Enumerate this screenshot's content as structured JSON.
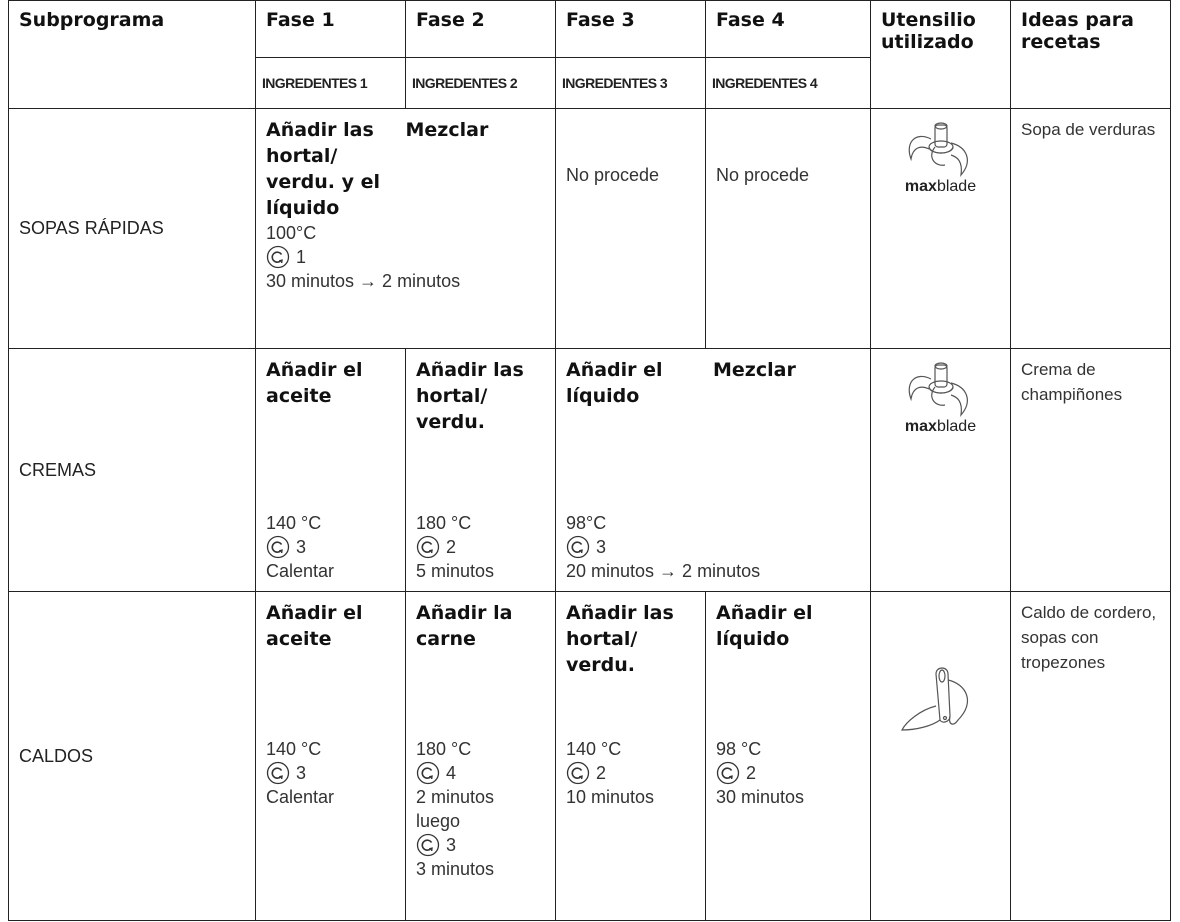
{
  "header": {
    "columns": [
      "Subprograma",
      "Fase 1",
      "Fase 2",
      "Fase 3",
      "Fase 4",
      "Utensilio utilizado",
      "Ideas para recetas"
    ],
    "ingredients": [
      "INGREDENTES 1",
      "INGREDENTES 2",
      "INGREDENTES 3",
      "INGREDENTES 4"
    ]
  },
  "rows": [
    {
      "name": "SOPAS RÁPIDAS",
      "phases": [
        {
          "actions": [
            "Añadir las hortal/ verdu. y el líquido",
            "Mezclar"
          ],
          "lines": [
            "100°C",
            {
              "speed": "1"
            },
            "30 minutos → 2 minutos"
          ]
        },
        {
          "text": "No procede"
        },
        {
          "text": "No procede"
        }
      ],
      "tool": {
        "bold": "max",
        "regular": "blade"
      },
      "ideas": "Sopa de verduras"
    },
    {
      "name": "CREMAS",
      "phases": [
        {
          "actions": [
            "Añadir el aceite"
          ],
          "lines": [
            "140 °C",
            {
              "speed": "3"
            },
            "Calentar"
          ]
        },
        {
          "actions": [
            "Añadir las hortal/ verdu."
          ],
          "lines": [
            "180 °C",
            {
              "speed": "2"
            },
            "5 minutos"
          ]
        },
        {
          "actions": [
            "Añadir el líquido",
            "Mezclar"
          ],
          "lines": [
            "98°C",
            {
              "speed": "3"
            },
            "20 minutos → 2 minutos"
          ]
        }
      ],
      "tool": {
        "bold": "max",
        "regular": "blade"
      },
      "ideas": "Crema de champiñones"
    },
    {
      "name": "CALDOS",
      "phases": [
        {
          "actions": [
            "Añadir el aceite"
          ],
          "lines": [
            "140 °C",
            {
              "speed": "3"
            },
            "Calentar"
          ]
        },
        {
          "actions": [
            "Añadir la carne"
          ],
          "lines": [
            "180 °C",
            {
              "speed": "4"
            },
            "2 minutos",
            "luego",
            {
              "speed": "3"
            },
            "3 minutos"
          ]
        },
        {
          "actions": [
            "Añadir las hortal/ verdu."
          ],
          "lines": [
            "140 °C",
            {
              "speed": "2"
            },
            "10 minutos"
          ]
        },
        {
          "actions": [
            "Añadir el líquido"
          ],
          "lines": [
            "98 °C",
            {
              "speed": "2"
            },
            "30 minutos"
          ]
        }
      ],
      "ideas": "Caldo de cordero, sopas con tropezones"
    }
  ]
}
